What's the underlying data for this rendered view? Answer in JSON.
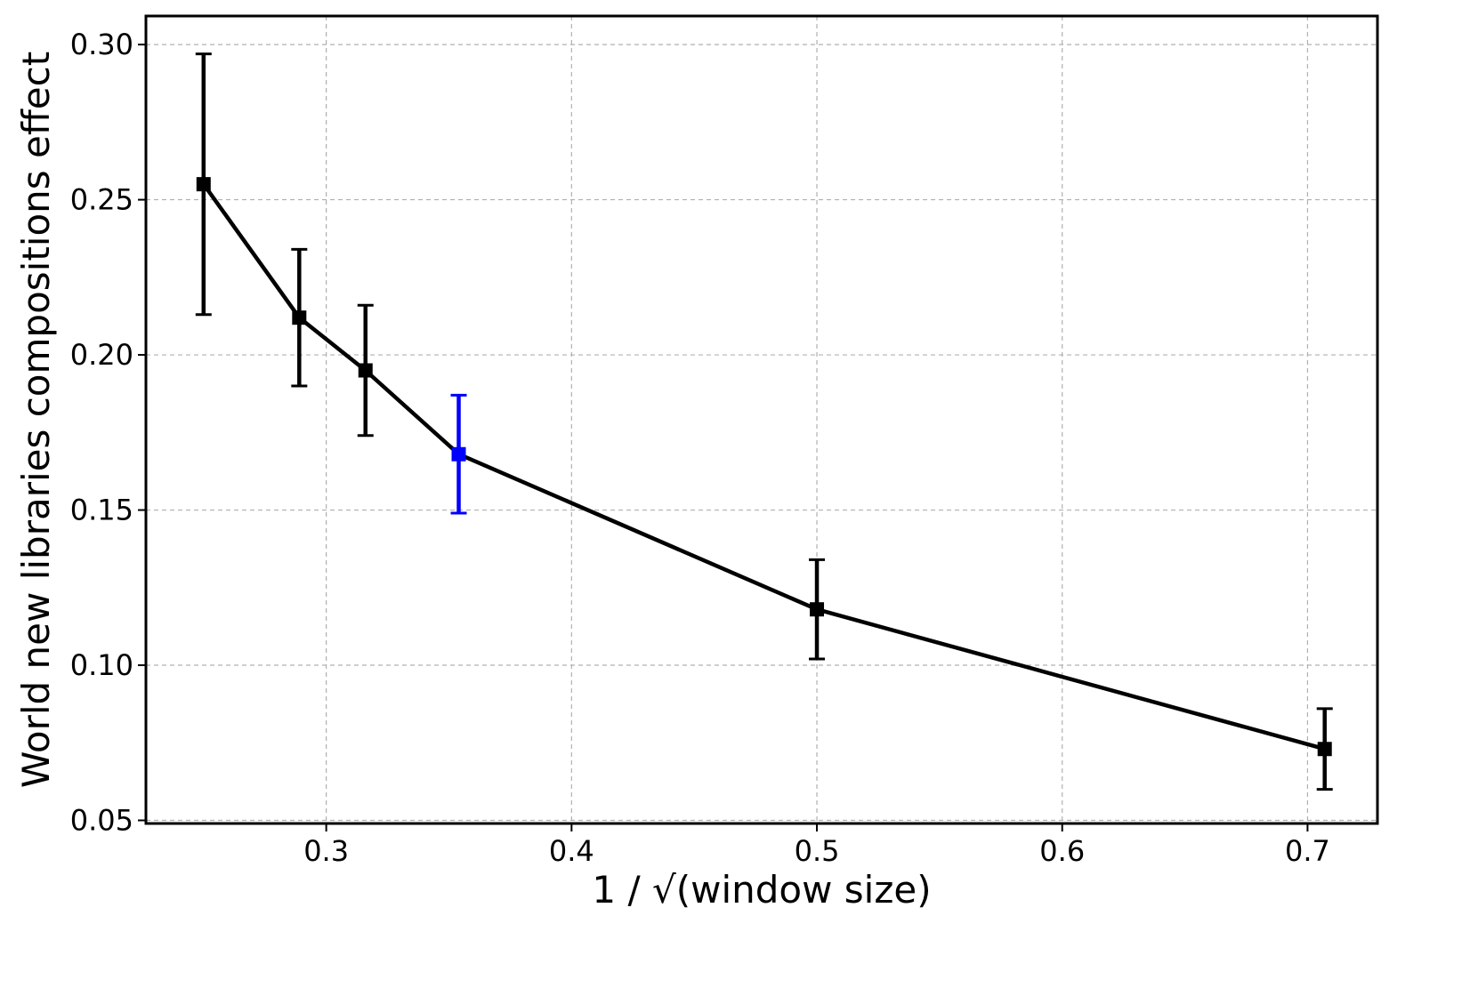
{
  "chart_data": {
    "type": "line",
    "title": "",
    "xlabel": "1 / √(window size)",
    "ylabel": "World new libraries compositions effect",
    "xlim": [
      0.2265,
      0.7285
    ],
    "ylim": [
      0.049,
      0.3092
    ],
    "xticks": [
      0.3,
      0.4,
      0.5,
      0.6,
      0.7
    ],
    "xtick_labels": [
      "0.3",
      "0.4",
      "0.5",
      "0.6",
      "0.7"
    ],
    "yticks": [
      0.05,
      0.1,
      0.15,
      0.2,
      0.25,
      0.3
    ],
    "ytick_labels": [
      "0.05",
      "0.10",
      "0.15",
      "0.20",
      "0.25",
      "0.30"
    ],
    "grid": true,
    "series": [
      {
        "color": "#000000",
        "marker": "square",
        "points": [
          {
            "x": 0.25,
            "y": 0.255,
            "err_low": 0.213,
            "err_high": 0.297,
            "color": "#000000"
          },
          {
            "x": 0.289,
            "y": 0.212,
            "err_low": 0.19,
            "err_high": 0.234,
            "color": "#000000"
          },
          {
            "x": 0.316,
            "y": 0.195,
            "err_low": 0.174,
            "err_high": 0.216,
            "color": "#000000"
          },
          {
            "x": 0.354,
            "y": 0.168,
            "err_low": 0.149,
            "err_high": 0.187,
            "color": "#0000ff"
          },
          {
            "x": 0.5,
            "y": 0.118,
            "err_low": 0.102,
            "err_high": 0.134,
            "color": "#000000"
          },
          {
            "x": 0.707,
            "y": 0.073,
            "err_low": 0.06,
            "err_high": 0.086,
            "color": "#000000"
          }
        ]
      }
    ]
  }
}
